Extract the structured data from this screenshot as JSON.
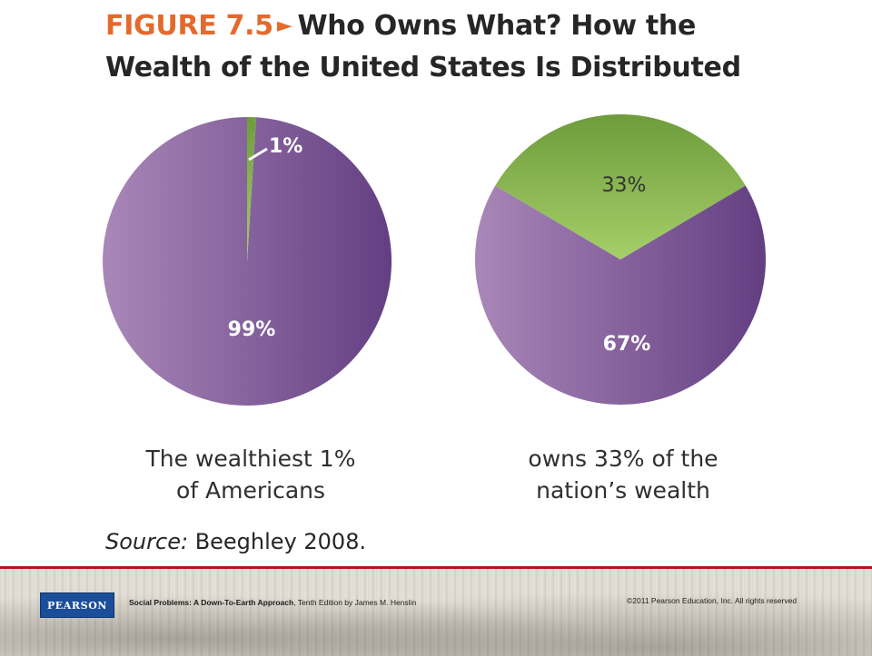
{
  "title": {
    "figure_label": "FIGURE 7.5",
    "text_line1": "Who Owns What? How the",
    "text_line2": "Wealth of the United States Is Distributed"
  },
  "colors": {
    "purple_light": "#a987b8",
    "purple_dark": "#633f82",
    "green_light": "#a6cf68",
    "green_dark": "#6e9c3c",
    "accent_orange": "#e36a2c",
    "footer_rule": "#b3171e",
    "pearson_blue": "#1b4e9a"
  },
  "chart_data": [
    {
      "type": "pie",
      "slices": [
        {
          "label": "1%",
          "value": 1
        },
        {
          "label": "99%",
          "value": 99
        }
      ],
      "caption": [
        "The wealthiest 1%",
        "of Americans"
      ]
    },
    {
      "type": "pie",
      "slices": [
        {
          "label": "33%",
          "value": 33
        },
        {
          "label": "67%",
          "value": 67
        }
      ],
      "caption": [
        "owns 33% of the",
        "nation’s wealth"
      ]
    }
  ],
  "source": {
    "label": "Source:",
    "text": "Beeghley 2008."
  },
  "footer": {
    "logo_text": "PEARSON",
    "book_title": "Social Problems: A Down-To-Earth Approach",
    "book_rest": ", Tenth Edition by James M. Henslin",
    "copyright": "©2011 Pearson Education, Inc.  All rights reserved"
  }
}
